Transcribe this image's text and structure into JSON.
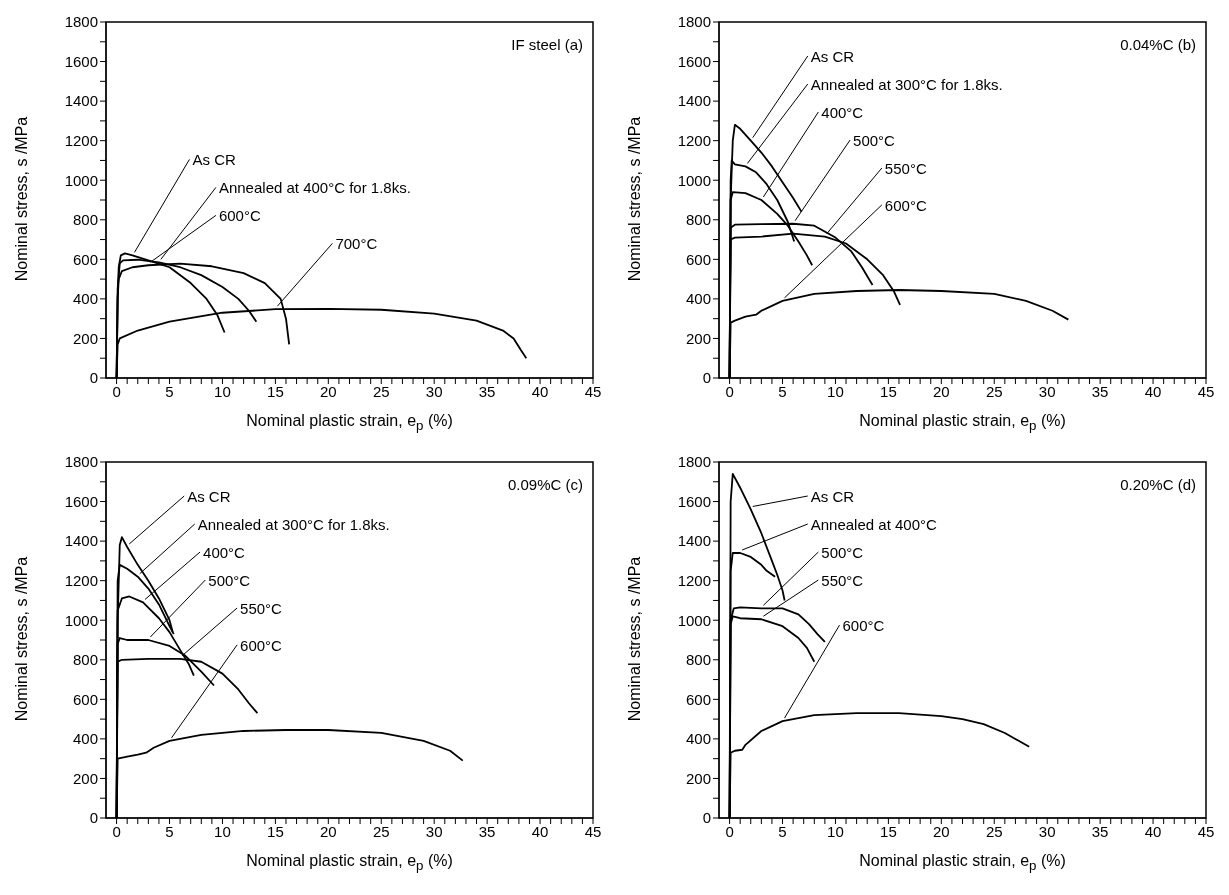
{
  "chart_data": [
    {
      "type": "line",
      "annotations": [
        "IF steel  (a)"
      ],
      "xlabel": "Nominal plastic strain, e$_{p}$ (%)",
      "ylabel": "Nominal stress, s /MPa",
      "xlim": [
        -1,
        45
      ],
      "ylim": [
        0,
        1800
      ],
      "xticks": [
        0,
        {
          "value": 1,
          "label": null
        },
        {
          "value": 2,
          "label": null
        },
        {
          "value": 3,
          "label": null
        },
        {
          "value": 4,
          "label": null
        },
        5,
        {
          "value": 6,
          "label": null
        },
        {
          "value": 7,
          "label": null
        },
        {
          "value": 8,
          "label": null
        },
        {
          "value": 9,
          "label": null
        },
        10,
        {
          "value": 11,
          "label": null
        },
        {
          "value": 12,
          "label": null
        },
        {
          "value": 13,
          "label": null
        },
        {
          "value": 14,
          "label": null
        },
        15,
        {
          "value": 16,
          "label": null
        },
        {
          "value": 17,
          "label": null
        },
        {
          "value": 18,
          "label": null
        },
        {
          "value": 19,
          "label": null
        },
        20,
        {
          "value": 21,
          "label": null
        },
        {
          "value": 22,
          "label": null
        },
        {
          "value": 23,
          "label": null
        },
        {
          "value": 24,
          "label": null
        },
        25,
        {
          "value": 26,
          "label": null
        },
        {
          "value": 27,
          "label": null
        },
        {
          "value": 28,
          "label": null
        },
        {
          "value": 29,
          "label": null
        },
        30,
        {
          "value": 31,
          "label": null
        },
        {
          "value": 32,
          "label": null
        },
        {
          "value": 33,
          "label": null
        },
        {
          "value": 34,
          "label": null
        },
        35,
        {
          "value": 36,
          "label": null
        },
        {
          "value": 37,
          "label": null
        },
        {
          "value": 38,
          "label": null
        },
        {
          "value": 39,
          "label": null
        },
        40,
        {
          "value": 41,
          "label": null
        },
        {
          "value": 42,
          "label": null
        },
        {
          "value": 43,
          "label": null
        },
        {
          "value": 44,
          "label": null
        },
        45
      ],
      "yticks": [
        0,
        {
          "value": 100,
          "label": null
        },
        200,
        {
          "value": 300,
          "label": null
        },
        400,
        {
          "value": 500,
          "label": null
        },
        600,
        {
          "value": 700,
          "label": null
        },
        800,
        {
          "value": 900,
          "label": null
        },
        1000,
        {
          "value": 1100,
          "label": null
        },
        1200,
        {
          "value": 1300,
          "label": null
        },
        1400,
        {
          "value": 1500,
          "label": null
        },
        1600,
        {
          "value": 1700,
          "label": null
        },
        1800
      ],
      "series": [
        {
          "name": "As CR",
          "color": "#000000",
          "x": [
            0,
            0.1,
            0.2,
            0.4,
            0.8,
            1.5,
            3,
            5,
            7,
            8.5,
            9.5,
            10.2
          ],
          "values": [
            0,
            400,
            560,
            620,
            630,
            620,
            595,
            560,
            480,
            400,
            320,
            230
          ]
        },
        {
          "name": "Annealed at 400°C for 1.8ks.",
          "color": "#000000",
          "x": [
            0,
            0.1,
            0.3,
            0.6,
            2,
            4,
            6,
            8,
            10,
            11.5,
            12.5,
            13.2
          ],
          "values": [
            0,
            450,
            580,
            595,
            598,
            585,
            560,
            520,
            460,
            400,
            340,
            285
          ]
        },
        {
          "name": "600°C",
          "color": "#000000",
          "x": [
            0,
            0.1,
            0.2,
            0.5,
            1.5,
            3,
            6,
            9,
            12,
            14,
            15.5,
            16,
            16.3
          ],
          "values": [
            0,
            400,
            500,
            540,
            560,
            570,
            578,
            565,
            530,
            480,
            400,
            300,
            170
          ]
        },
        {
          "name": "700°C",
          "color": "#000000",
          "x": [
            0,
            0.1,
            0.3,
            2,
            5,
            10,
            15,
            20,
            25,
            30,
            34,
            36.5,
            37.5,
            38.2,
            38.7
          ],
          "values": [
            0,
            170,
            200,
            240,
            285,
            330,
            348,
            350,
            345,
            325,
            290,
            240,
            200,
            140,
            100
          ]
        }
      ]
    },
    {
      "type": "line",
      "annotations": [
        "0.04%C  (b)"
      ],
      "xlabel": "Nominal plastic strain, e$_{p}$ (%)",
      "ylabel": "Nominal stress, s /MPa",
      "xlim": [
        -1,
        45
      ],
      "ylim": [
        0,
        1800
      ],
      "xticks": [
        0,
        {
          "value": 1,
          "label": null
        },
        {
          "value": 2,
          "label": null
        },
        {
          "value": 3,
          "label": null
        },
        {
          "value": 4,
          "label": null
        },
        5,
        {
          "value": 6,
          "label": null
        },
        {
          "value": 7,
          "label": null
        },
        {
          "value": 8,
          "label": null
        },
        {
          "value": 9,
          "label": null
        },
        10,
        {
          "value": 11,
          "label": null
        },
        {
          "value": 12,
          "label": null
        },
        {
          "value": 13,
          "label": null
        },
        {
          "value": 14,
          "label": null
        },
        15,
        {
          "value": 16,
          "label": null
        },
        {
          "value": 17,
          "label": null
        },
        {
          "value": 18,
          "label": null
        },
        {
          "value": 19,
          "label": null
        },
        20,
        {
          "value": 21,
          "label": null
        },
        {
          "value": 22,
          "label": null
        },
        {
          "value": 23,
          "label": null
        },
        {
          "value": 24,
          "label": null
        },
        25,
        {
          "value": 26,
          "label": null
        },
        {
          "value": 27,
          "label": null
        },
        {
          "value": 28,
          "label": null
        },
        {
          "value": 29,
          "label": null
        },
        30,
        {
          "value": 31,
          "label": null
        },
        {
          "value": 32,
          "label": null
        },
        {
          "value": 33,
          "label": null
        },
        {
          "value": 34,
          "label": null
        },
        35,
        {
          "value": 36,
          "label": null
        },
        {
          "value": 37,
          "label": null
        },
        {
          "value": 38,
          "label": null
        },
        {
          "value": 39,
          "label": null
        },
        40,
        {
          "value": 41,
          "label": null
        },
        {
          "value": 42,
          "label": null
        },
        {
          "value": 43,
          "label": null
        },
        {
          "value": 44,
          "label": null
        },
        45
      ],
      "yticks": [
        0,
        {
          "value": 100,
          "label": null
        },
        200,
        {
          "value": 300,
          "label": null
        },
        400,
        {
          "value": 500,
          "label": null
        },
        600,
        {
          "value": 700,
          "label": null
        },
        800,
        {
          "value": 900,
          "label": null
        },
        1000,
        {
          "value": 1100,
          "label": null
        },
        1200,
        {
          "value": 1300,
          "label": null
        },
        1400,
        {
          "value": 1500,
          "label": null
        },
        1600,
        {
          "value": 1700,
          "label": null
        },
        1800
      ],
      "series": [
        {
          "name": "As CR",
          "color": "#000000",
          "x": [
            0,
            0.1,
            0.3,
            0.5,
            1,
            2,
            3,
            4,
            5,
            6,
            6.8
          ],
          "values": [
            0,
            900,
            1200,
            1280,
            1260,
            1200,
            1140,
            1070,
            990,
            910,
            840
          ]
        },
        {
          "name": "Annealed at 300°C for 1.8ks.",
          "color": "#000000",
          "x": [
            0,
            0.1,
            0.2,
            0.5,
            1.5,
            2.5,
            3.5,
            4.5,
            5.5,
            6.1
          ],
          "values": [
            0,
            1000,
            1100,
            1080,
            1070,
            1040,
            980,
            900,
            790,
            690
          ]
        },
        {
          "name": "400°C",
          "color": "#000000",
          "x": [
            0,
            0.1,
            0.3,
            1.5,
            3,
            4.5,
            5.5,
            6.5,
            7.3,
            7.8
          ],
          "values": [
            0,
            900,
            940,
            935,
            900,
            830,
            770,
            690,
            620,
            570
          ]
        },
        {
          "name": "500°C",
          "color": "#000000",
          "x": [
            0,
            0.1,
            0.5,
            3,
            6,
            8,
            10,
            11.5,
            12.5,
            13.5
          ],
          "values": [
            0,
            760,
            775,
            778,
            780,
            770,
            710,
            640,
            560,
            470
          ]
        },
        {
          "name": "550°C",
          "color": "#000000",
          "x": [
            0,
            0.1,
            0.5,
            3,
            6,
            9,
            11,
            13,
            14.5,
            15.5,
            16.1
          ],
          "values": [
            0,
            700,
            710,
            715,
            730,
            715,
            680,
            600,
            520,
            440,
            370
          ]
        },
        {
          "name": "600°C",
          "color": "#000000",
          "x": [
            0,
            0.1,
            0.5,
            1.5,
            2.5,
            3,
            5,
            8,
            12,
            16,
            20,
            25,
            28,
            30.5,
            32
          ],
          "values": [
            0,
            280,
            290,
            310,
            320,
            340,
            390,
            425,
            440,
            445,
            440,
            425,
            390,
            340,
            295
          ]
        }
      ]
    },
    {
      "type": "line",
      "annotations": [
        "0.09%C  (c)"
      ],
      "xlabel": "Nominal plastic strain, e$_{p}$ (%)",
      "ylabel": "Nominal stress, s /MPa",
      "xlim": [
        -1,
        45
      ],
      "ylim": [
        0,
        1800
      ],
      "xticks": [
        0,
        {
          "value": 1,
          "label": null
        },
        {
          "value": 2,
          "label": null
        },
        {
          "value": 3,
          "label": null
        },
        {
          "value": 4,
          "label": null
        },
        5,
        {
          "value": 6,
          "label": null
        },
        {
          "value": 7,
          "label": null
        },
        {
          "value": 8,
          "label": null
        },
        {
          "value": 9,
          "label": null
        },
        10,
        {
          "value": 11,
          "label": null
        },
        {
          "value": 12,
          "label": null
        },
        {
          "value": 13,
          "label": null
        },
        {
          "value": 14,
          "label": null
        },
        15,
        {
          "value": 16,
          "label": null
        },
        {
          "value": 17,
          "label": null
        },
        {
          "value": 18,
          "label": null
        },
        {
          "value": 19,
          "label": null
        },
        20,
        {
          "value": 21,
          "label": null
        },
        {
          "value": 22,
          "label": null
        },
        {
          "value": 23,
          "label": null
        },
        {
          "value": 24,
          "label": null
        },
        25,
        {
          "value": 26,
          "label": null
        },
        {
          "value": 27,
          "label": null
        },
        {
          "value": 28,
          "label": null
        },
        {
          "value": 29,
          "label": null
        },
        30,
        {
          "value": 31,
          "label": null
        },
        {
          "value": 32,
          "label": null
        },
        {
          "value": 33,
          "label": null
        },
        {
          "value": 34,
          "label": null
        },
        35,
        {
          "value": 36,
          "label": null
        },
        {
          "value": 37,
          "label": null
        },
        {
          "value": 38,
          "label": null
        },
        {
          "value": 39,
          "label": null
        },
        40,
        {
          "value": 41,
          "label": null
        },
        {
          "value": 42,
          "label": null
        },
        {
          "value": 43,
          "label": null
        },
        {
          "value": 44,
          "label": null
        },
        45
      ],
      "yticks": [
        0,
        {
          "value": 100,
          "label": null
        },
        200,
        {
          "value": 300,
          "label": null
        },
        400,
        {
          "value": 500,
          "label": null
        },
        600,
        {
          "value": 700,
          "label": null
        },
        800,
        {
          "value": 900,
          "label": null
        },
        1000,
        {
          "value": 1100,
          "label": null
        },
        1200,
        {
          "value": 1300,
          "label": null
        },
        1400,
        {
          "value": 1500,
          "label": null
        },
        1600,
        {
          "value": 1700,
          "label": null
        },
        1800
      ],
      "series": [
        {
          "name": "As CR",
          "color": "#000000",
          "x": [
            0,
            0.1,
            0.3,
            0.5,
            1,
            2,
            3,
            4,
            5,
            5.3
          ],
          "values": [
            0,
            1000,
            1380,
            1420,
            1370,
            1280,
            1200,
            1110,
            1000,
            940
          ]
        },
        {
          "name": "Annealed at 300°C for 1.8ks.",
          "color": "#000000",
          "x": [
            0,
            0.1,
            0.3,
            1,
            2,
            3,
            4,
            5,
            5.4
          ],
          "values": [
            0,
            1200,
            1280,
            1260,
            1220,
            1160,
            1080,
            970,
            930
          ]
        },
        {
          "name": "400°C",
          "color": "#000000",
          "x": [
            0,
            0.1,
            0.5,
            1.2,
            2.5,
            4,
            5,
            6,
            6.8,
            7.3
          ],
          "values": [
            0,
            1050,
            1110,
            1120,
            1090,
            1010,
            940,
            850,
            780,
            720
          ]
        },
        {
          "name": "500°C",
          "color": "#000000",
          "x": [
            0,
            0.1,
            0.3,
            1,
            3,
            5,
            6.5,
            8,
            9.2
          ],
          "values": [
            0,
            880,
            910,
            900,
            900,
            870,
            820,
            740,
            670
          ]
        },
        {
          "name": "550°C",
          "color": "#000000",
          "x": [
            0,
            0.1,
            0.5,
            3,
            6,
            8,
            10,
            11.5,
            12.5,
            13.3
          ],
          "values": [
            0,
            790,
            800,
            805,
            805,
            790,
            730,
            650,
            580,
            530
          ]
        },
        {
          "name": "600°C",
          "color": "#000000",
          "x": [
            0,
            0.1,
            1,
            2,
            2.8,
            3.5,
            5,
            8,
            12,
            16,
            20,
            25,
            29,
            31.5,
            32.7
          ],
          "values": [
            0,
            300,
            310,
            320,
            330,
            355,
            390,
            420,
            440,
            445,
            445,
            430,
            390,
            340,
            290
          ]
        }
      ]
    },
    {
      "type": "line",
      "annotations": [
        "0.20%C (d)"
      ],
      "xlabel": "Nominal plastic strain, e$_{p}$ (%)",
      "ylabel": "Nominal stress, s /MPa",
      "xlim": [
        -1,
        45
      ],
      "ylim": [
        0,
        1800
      ],
      "xticks": [
        0,
        {
          "value": 1,
          "label": null
        },
        {
          "value": 2,
          "label": null
        },
        {
          "value": 3,
          "label": null
        },
        {
          "value": 4,
          "label": null
        },
        5,
        {
          "value": 6,
          "label": null
        },
        {
          "value": 7,
          "label": null
        },
        {
          "value": 8,
          "label": null
        },
        {
          "value": 9,
          "label": null
        },
        10,
        {
          "value": 11,
          "label": null
        },
        {
          "value": 12,
          "label": null
        },
        {
          "value": 13,
          "label": null
        },
        {
          "value": 14,
          "label": null
        },
        15,
        {
          "value": 16,
          "label": null
        },
        {
          "value": 17,
          "label": null
        },
        {
          "value": 18,
          "label": null
        },
        {
          "value": 19,
          "label": null
        },
        20,
        {
          "value": 21,
          "label": null
        },
        {
          "value": 22,
          "label": null
        },
        {
          "value": 23,
          "label": null
        },
        {
          "value": 24,
          "label": null
        },
        25,
        {
          "value": 26,
          "label": null
        },
        {
          "value": 27,
          "label": null
        },
        {
          "value": 28,
          "label": null
        },
        {
          "value": 29,
          "label": null
        },
        30,
        {
          "value": 31,
          "label": null
        },
        {
          "value": 32,
          "label": null
        },
        {
          "value": 33,
          "label": null
        },
        {
          "value": 34,
          "label": null
        },
        35,
        {
          "value": 36,
          "label": null
        },
        {
          "value": 37,
          "label": null
        },
        {
          "value": 38,
          "label": null
        },
        {
          "value": 39,
          "label": null
        },
        40,
        {
          "value": 41,
          "label": null
        },
        {
          "value": 42,
          "label": null
        },
        {
          "value": 43,
          "label": null
        },
        {
          "value": 44,
          "label": null
        },
        45
      ],
      "yticks": [
        0,
        {
          "value": 100,
          "label": null
        },
        200,
        {
          "value": 300,
          "label": null
        },
        400,
        {
          "value": 500,
          "label": null
        },
        600,
        {
          "value": 700,
          "label": null
        },
        800,
        {
          "value": 900,
          "label": null
        },
        1000,
        {
          "value": 1100,
          "label": null
        },
        1200,
        {
          "value": 1300,
          "label": null
        },
        1400,
        {
          "value": 1500,
          "label": null
        },
        1600,
        {
          "value": 1700,
          "label": null
        },
        1800
      ],
      "series": [
        {
          "name": "As CR",
          "color": "#000000",
          "x": [
            0,
            0.1,
            0.3,
            1,
            2,
            3,
            4,
            4.5,
            5,
            5.2
          ],
          "values": [
            0,
            1600,
            1740,
            1670,
            1560,
            1440,
            1300,
            1230,
            1150,
            1100
          ]
        },
        {
          "name": "Annealed at 400°C",
          "color": "#000000",
          "x": [
            0,
            0.1,
            0.3,
            1,
            2,
            3,
            3.5,
            4.3
          ],
          "values": [
            0,
            1250,
            1340,
            1340,
            1320,
            1280,
            1250,
            1220
          ]
        },
        {
          "name": "500°C",
          "color": "#000000",
          "x": [
            0,
            0.1,
            0.4,
            1,
            3,
            5,
            6.5,
            7.5,
            8.3,
            9
          ],
          "values": [
            0,
            1000,
            1060,
            1065,
            1060,
            1060,
            1030,
            980,
            930,
            890
          ]
        },
        {
          "name": "550°C",
          "color": "#000000",
          "x": [
            0,
            0.1,
            0.3,
            1,
            3,
            5,
            6.5,
            7.3,
            8
          ],
          "values": [
            0,
            980,
            1020,
            1010,
            1005,
            970,
            910,
            860,
            790
          ]
        },
        {
          "name": "600°C",
          "color": "#000000",
          "x": [
            0,
            0.1,
            0.5,
            1.2,
            1.5,
            3,
            5,
            8,
            12,
            16,
            20,
            22,
            24,
            26,
            28.3
          ],
          "values": [
            0,
            330,
            340,
            345,
            370,
            440,
            490,
            520,
            530,
            530,
            515,
            500,
            475,
            430,
            360
          ]
        }
      ]
    }
  ]
}
